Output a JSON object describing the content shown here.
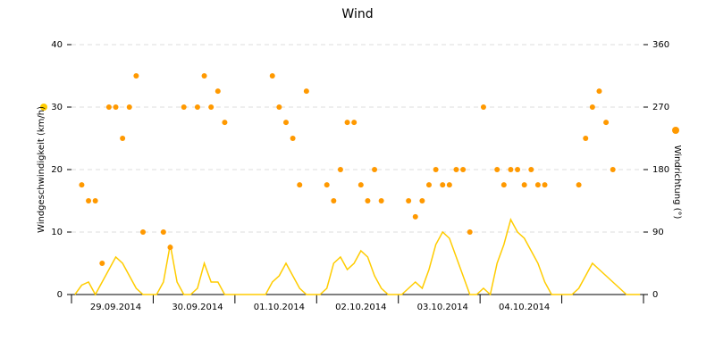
{
  "chart_data": {
    "type": "combo",
    "title": "Wind",
    "y_label": "Windgeschwindigkeit (km/h)",
    "y2_label": "Windrichtung (°)",
    "categories": [
      null,
      null,
      null,
      null,
      null,
      null,
      "29.09.2014",
      null,
      null,
      null,
      null,
      null,
      null,
      null,
      null,
      null,
      null,
      null,
      "30.09.2014",
      null,
      null,
      null,
      null,
      null,
      null,
      null,
      null,
      null,
      null,
      null,
      "01.10.2014",
      null,
      null,
      null,
      null,
      null,
      null,
      null,
      null,
      null,
      null,
      null,
      "02.10.2014",
      null,
      null,
      null,
      null,
      null,
      null,
      null,
      null,
      null,
      null,
      null,
      "03.10.2014",
      null,
      null,
      null,
      null,
      null,
      null,
      null,
      null,
      null,
      null,
      null,
      "04.10.2014",
      null,
      null,
      null,
      null,
      null,
      null,
      null,
      null,
      null,
      null,
      null,
      null,
      null,
      null,
      null,
      null,
      null
    ],
    "ylim": [
      0,
      40
    ],
    "yticks": [
      0,
      10,
      20,
      30,
      40
    ],
    "y2lim": [
      0,
      360
    ],
    "y2ticks": [
      0,
      90,
      180,
      270,
      360
    ],
    "grid": true,
    "series": [
      {
        "kind": "line",
        "color": "#ffcc00",
        "values": [
          0,
          1.5,
          2,
          0,
          2,
          4,
          6,
          5,
          3,
          1,
          0,
          0,
          0,
          2,
          8,
          2,
          0,
          0,
          1,
          5,
          2,
          2,
          0,
          0,
          0,
          0,
          0,
          0,
          0,
          2,
          3,
          5,
          3,
          1,
          0,
          0,
          0,
          1,
          5,
          6,
          4,
          5,
          7,
          6,
          3,
          1,
          0,
          0,
          0,
          1,
          2,
          1,
          4,
          8,
          10,
          9,
          6,
          3,
          0,
          0,
          1,
          0,
          5,
          8,
          12,
          10,
          9,
          7,
          5,
          2,
          0,
          0,
          0,
          0,
          1,
          3,
          5,
          4,
          3,
          2,
          1,
          0,
          0,
          0
        ]
      },
      {
        "kind": "scatter",
        "axis": "y2",
        "color": "#ff9900",
        "values": [
          null,
          158,
          135,
          135,
          45,
          270,
          270,
          225,
          270,
          315,
          90,
          null,
          null,
          90,
          68,
          null,
          270,
          null,
          270,
          315,
          270,
          293,
          248,
          null,
          null,
          null,
          null,
          null,
          null,
          315,
          270,
          248,
          225,
          158,
          293,
          null,
          null,
          158,
          135,
          180,
          248,
          248,
          158,
          135,
          180,
          135,
          null,
          null,
          null,
          135,
          112,
          135,
          158,
          180,
          158,
          158,
          180,
          180,
          90,
          null,
          270,
          null,
          180,
          158,
          180,
          180,
          158,
          180,
          158,
          158,
          null,
          null,
          null,
          null,
          158,
          225,
          270,
          293,
          248,
          180,
          null,
          null,
          null,
          null
        ]
      }
    ]
  }
}
